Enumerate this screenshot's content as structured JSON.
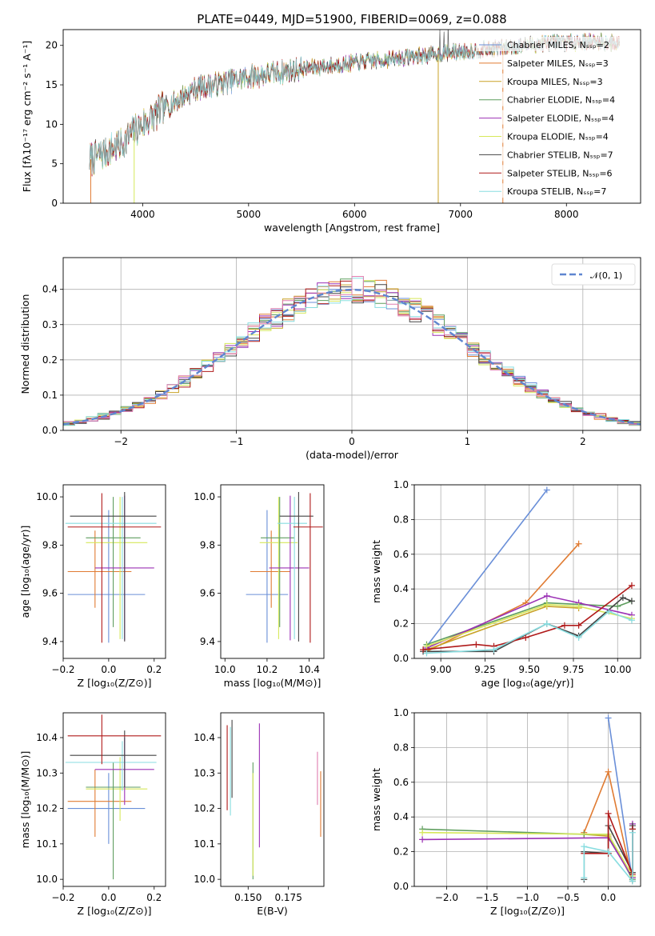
{
  "figure": {
    "title": "PLATE=0449, MJD=51900, FIBERID=0069, z=0.088"
  },
  "colors": [
    "#6a8fd8",
    "#e07b32",
    "#c9a227",
    "#5f9e5f",
    "#9b30b5",
    "#d6e85a",
    "#444444",
    "#b01a1a",
    "#88dde0"
  ],
  "chart_data": [
    {
      "id": "spectrum",
      "type": "line",
      "xlabel": "wavelength [Angstrom, rest frame]",
      "ylabel": "Flux [fλ10⁻¹⁷ erg cm⁻² s⁻¹ A⁻¹]",
      "xlim": [
        3250,
        8700
      ],
      "ylim": [
        0,
        22
      ],
      "xticks": [
        4000,
        5000,
        6000,
        7000,
        8000
      ],
      "yticks": [
        0,
        5,
        10,
        15,
        20
      ],
      "grid": false,
      "legend_position": "top-right",
      "series": [
        {
          "name": "Chabrier MILES, Nₛₛₚ=2",
          "color": "#6a8fd8"
        },
        {
          "name": "Salpeter MILES, Nₛₛₚ=3",
          "color": "#e07b32"
        },
        {
          "name": "Kroupa MILES, Nₛₛₚ=3",
          "color": "#c9a227"
        },
        {
          "name": "Chabrier ELODIE, Nₛₛₚ=4",
          "color": "#5f9e5f"
        },
        {
          "name": "Salpeter ELODIE, Nₛₛₚ=4",
          "color": "#9b30b5"
        },
        {
          "name": "Kroupa ELODIE, Nₛₛₚ=4",
          "color": "#d6e85a"
        },
        {
          "name": "Chabrier STELIB, Nₛₛₚ=7",
          "color": "#444444"
        },
        {
          "name": "Salpeter STELIB, Nₛₛₚ=6",
          "color": "#b01a1a"
        },
        {
          "name": "Kroupa STELIB, Nₛₛₚ=7",
          "color": "#88dde0"
        }
      ],
      "continuum": {
        "x": [
          3500,
          3800,
          4000,
          4200,
          4500,
          5000,
          5500,
          6000,
          6500,
          7000,
          7400,
          7800,
          8200,
          8500
        ],
        "y": [
          5.5,
          7.5,
          10.0,
          12.0,
          14.5,
          16.0,
          17.0,
          17.8,
          18.5,
          19.2,
          19.7,
          20.3,
          20.5,
          20.3
        ]
      }
    },
    {
      "id": "residuals",
      "type": "step",
      "xlabel": "(data-model)/error",
      "ylabel": "Normed distribution",
      "xlim": [
        -2.5,
        2.5
      ],
      "ylim": [
        0,
        0.49
      ],
      "xticks": [
        -2,
        -1,
        0,
        1,
        2
      ],
      "yticks": [
        0.0,
        0.1,
        0.2,
        0.3,
        0.4
      ],
      "grid": true,
      "legend_position": "top-right",
      "reference": {
        "name": "𝒩(0, 1)",
        "mean": 0,
        "sigma": 1,
        "color": "#5f86d0"
      },
      "bins": {
        "start": -2.5,
        "width": 0.1,
        "count": 50
      }
    },
    {
      "id": "age-vs-Z",
      "type": "errorbar",
      "xlabel": "Z [log₁₀(Z/Z⊙)]",
      "ylabel": "age  [log₁₀(age/yr)]",
      "xlim": [
        -0.2,
        0.25
      ],
      "ylim": [
        9.33,
        10.05
      ],
      "xticks": [
        -0.2,
        0.0,
        0.2
      ],
      "yticks": [
        9.4,
        9.6,
        9.8,
        10.0
      ],
      "grid": false,
      "points": [
        {
          "x": 0.0,
          "xerr": [
            0.18,
            0.16
          ],
          "y": 9.595,
          "yerr": [
            0.2,
            0.35
          ],
          "color": "#6a8fd8"
        },
        {
          "x": -0.06,
          "xerr": [
            0.12,
            0.16
          ],
          "y": 9.69,
          "yerr": [
            0.15,
            0.17
          ],
          "color": "#e07b32"
        },
        {
          "x": 0.05,
          "xerr": [
            0.15,
            0.12
          ],
          "y": 9.81,
          "yerr": [
            0.4,
            0.19
          ],
          "color": "#d6e85a"
        },
        {
          "x": 0.02,
          "xerr": [
            0.12,
            0.12
          ],
          "y": 9.83,
          "yerr": [
            0.37,
            0.17
          ],
          "color": "#5f9e5f"
        },
        {
          "x": 0.07,
          "xerr": [
            0.13,
            0.13
          ],
          "y": 9.705,
          "yerr": [
            0.3,
            0.3
          ],
          "color": "#9b30b5"
        },
        {
          "x": 0.06,
          "xerr": [
            0.25,
            0.15
          ],
          "y": 9.89,
          "yerr": [
            0.48,
            0.11
          ],
          "color": "#88dde0"
        },
        {
          "x": 0.07,
          "xerr": [
            0.24,
            0.14
          ],
          "y": 9.92,
          "yerr": [
            0.52,
            0.1
          ],
          "color": "#444444"
        },
        {
          "x": -0.03,
          "xerr": [
            0.15,
            0.26
          ],
          "y": 9.875,
          "yerr": [
            0.48,
            0.14
          ],
          "color": "#b01a1a"
        }
      ]
    },
    {
      "id": "age-vs-mass",
      "type": "errorbar",
      "xlabel": "mass [log₁₀(M/M⊙)]",
      "ylabel": "",
      "xlim": [
        9.98,
        10.47
      ],
      "ylim": [
        9.33,
        10.05
      ],
      "xticks": [
        10.0,
        10.2,
        10.4
      ],
      "yticks": [
        9.4,
        9.6,
        9.8,
        10.0
      ],
      "grid": false,
      "points": [
        {
          "x": 10.2,
          "xerr": [
            0.1,
            0.1
          ],
          "y": 9.595,
          "yerr": [
            0.2,
            0.35
          ],
          "color": "#6a8fd8"
        },
        {
          "x": 10.22,
          "xerr": [
            0.1,
            0.09
          ],
          "y": 9.69,
          "yerr": [
            0.15,
            0.17
          ],
          "color": "#e07b32"
        },
        {
          "x": 10.255,
          "xerr": [
            0.09,
            0.09
          ],
          "y": 9.81,
          "yerr": [
            0.4,
            0.19
          ],
          "color": "#d6e85a"
        },
        {
          "x": 10.26,
          "xerr": [
            0.09,
            0.07
          ],
          "y": 9.83,
          "yerr": [
            0.37,
            0.17
          ],
          "color": "#5f9e5f"
        },
        {
          "x": 10.31,
          "xerr": [
            0.1,
            0.09
          ],
          "y": 9.705,
          "yerr": [
            0.3,
            0.3
          ],
          "color": "#9b30b5"
        },
        {
          "x": 10.33,
          "xerr": [
            0.08,
            0.06
          ],
          "y": 9.89,
          "yerr": [
            0.48,
            0.11
          ],
          "color": "#88dde0"
        },
        {
          "x": 10.35,
          "xerr": [
            0.09,
            0.07
          ],
          "y": 9.92,
          "yerr": [
            0.52,
            0.1
          ],
          "color": "#444444"
        },
        {
          "x": 10.405,
          "xerr": [
            0.08,
            0.06
          ],
          "y": 9.875,
          "yerr": [
            0.48,
            0.14
          ],
          "color": "#b01a1a"
        }
      ]
    },
    {
      "id": "weight-vs-age",
      "type": "line",
      "xlabel": "age  [log₁₀(age/yr)]",
      "ylabel": "mass weight",
      "xlim": [
        8.85,
        10.13
      ],
      "ylim": [
        0,
        1.0
      ],
      "xticks": [
        9.0,
        9.25,
        9.5,
        9.75,
        10.0
      ],
      "yticks": [
        0.0,
        0.2,
        0.4,
        0.6,
        0.8,
        1.0
      ],
      "grid": true,
      "series": [
        {
          "color": "#6a8fd8",
          "x": [
            8.92,
            9.6
          ],
          "y": [
            0.07,
            0.97
          ]
        },
        {
          "color": "#e07b32",
          "x": [
            8.92,
            9.48,
            9.78
          ],
          "y": [
            0.04,
            0.32,
            0.66
          ]
        },
        {
          "color": "#c9a227",
          "x": [
            8.92,
            9.6,
            9.78
          ],
          "y": [
            0.05,
            0.3,
            0.29
          ]
        },
        {
          "color": "#5f9e5f",
          "x": [
            8.92,
            9.6,
            10.0,
            10.08
          ],
          "y": [
            0.08,
            0.32,
            0.3,
            0.33
          ]
        },
        {
          "color": "#9b30b5",
          "x": [
            8.92,
            9.6,
            9.78,
            10.08
          ],
          "y": [
            0.06,
            0.36,
            0.32,
            0.25
          ]
        },
        {
          "color": "#d6e85a",
          "x": [
            8.92,
            9.6,
            9.78,
            10.08
          ],
          "y": [
            0.07,
            0.31,
            0.3,
            0.23
          ]
        },
        {
          "color": "#444444",
          "x": [
            8.9,
            9.3,
            9.6,
            9.78,
            10.03,
            10.08
          ],
          "y": [
            0.04,
            0.04,
            0.2,
            0.13,
            0.35,
            0.33
          ]
        },
        {
          "color": "#b01a1a",
          "x": [
            8.9,
            9.2,
            9.3,
            9.48,
            9.7,
            9.78,
            10.08
          ],
          "y": [
            0.05,
            0.08,
            0.07,
            0.12,
            0.19,
            0.19,
            0.42
          ]
        },
        {
          "color": "#88dde0",
          "x": [
            8.92,
            9.3,
            9.6,
            9.78,
            9.95,
            10.08
          ],
          "y": [
            0.03,
            0.05,
            0.2,
            0.12,
            0.27,
            0.22
          ]
        }
      ]
    },
    {
      "id": "mass-vs-Z",
      "type": "errorbar",
      "xlabel": "Z [log₁₀(Z/Z⊙)]",
      "ylabel": "mass [log₁₀(M/M⊙)]",
      "xlim": [
        -0.2,
        0.25
      ],
      "ylim": [
        9.98,
        10.47
      ],
      "xticks": [
        -0.2,
        0.0,
        0.2
      ],
      "yticks": [
        10.0,
        10.1,
        10.2,
        10.3,
        10.4
      ],
      "grid": false,
      "points": [
        {
          "x": 0.0,
          "xerr": [
            0.18,
            0.16
          ],
          "y": 10.2,
          "yerr": [
            0.1,
            0.1
          ],
          "color": "#6a8fd8"
        },
        {
          "x": -0.06,
          "xerr": [
            0.12,
            0.16
          ],
          "y": 10.22,
          "yerr": [
            0.1,
            0.09
          ],
          "color": "#e07b32"
        },
        {
          "x": 0.05,
          "xerr": [
            0.15,
            0.12
          ],
          "y": 10.255,
          "yerr": [
            0.09,
            0.09
          ],
          "color": "#d6e85a"
        },
        {
          "x": 0.02,
          "xerr": [
            0.12,
            0.12
          ],
          "y": 10.26,
          "yerr": [
            0.26,
            0.07
          ],
          "color": "#5f9e5f"
        },
        {
          "x": 0.07,
          "xerr": [
            0.13,
            0.13
          ],
          "y": 10.31,
          "yerr": [
            0.1,
            0.09
          ],
          "color": "#9b30b5"
        },
        {
          "x": 0.06,
          "xerr": [
            0.25,
            0.15
          ],
          "y": 10.33,
          "yerr": [
            0.08,
            0.06
          ],
          "color": "#88dde0"
        },
        {
          "x": 0.07,
          "xerr": [
            0.24,
            0.14
          ],
          "y": 10.35,
          "yerr": [
            0.09,
            0.07
          ],
          "color": "#444444"
        },
        {
          "x": -0.03,
          "xerr": [
            0.15,
            0.26
          ],
          "y": 10.405,
          "yerr": [
            0.08,
            0.06
          ],
          "color": "#b01a1a"
        }
      ]
    },
    {
      "id": "mass-vs-EBV",
      "type": "errorbar",
      "xlabel": "E(B-V)",
      "ylabel": "",
      "xlim": [
        0.133,
        0.197
      ],
      "ylim": [
        9.98,
        10.47
      ],
      "xticks": [
        0.15,
        0.175
      ],
      "yticks": [
        10.0,
        10.1,
        10.2,
        10.3,
        10.4
      ],
      "grid": false,
      "points": [
        {
          "x": 0.137,
          "y": 10.315,
          "yerr": [
            0.12,
            0.12
          ],
          "color": "#b01a1a"
        },
        {
          "x": 0.139,
          "y": 10.31,
          "yerr": [
            0.13,
            0.12
          ],
          "color": "#88dde0"
        },
        {
          "x": 0.14,
          "y": 10.36,
          "yerr": [
            0.13,
            0.09
          ],
          "color": "#444444"
        },
        {
          "x": 0.153,
          "y": 10.17,
          "yerr": [
            0.17,
            0.16
          ],
          "color": "#5f9e5f"
        },
        {
          "x": 0.153,
          "y": 10.16,
          "yerr": [
            0.15,
            0.14
          ],
          "color": "#d6e85a"
        },
        {
          "x": 0.157,
          "y": 10.27,
          "yerr": [
            0.18,
            0.17
          ],
          "color": "#9b30b5"
        },
        {
          "x": 0.193,
          "y": 10.29,
          "yerr": [
            0.08,
            0.07
          ],
          "color": "#e07fb0"
        },
        {
          "x": 0.195,
          "y": 10.215,
          "yerr": [
            0.095,
            0.09
          ],
          "color": "#e07b32"
        }
      ]
    },
    {
      "id": "weight-vs-Z",
      "type": "line",
      "xlabel": "Z [log₁₀(Z/Z⊙)]",
      "ylabel": "mass weight",
      "xlim": [
        -2.4,
        0.4
      ],
      "ylim": [
        0,
        1.0
      ],
      "xticks": [
        -2.0,
        -1.5,
        -1.0,
        -0.5,
        0.0
      ],
      "yticks": [
        0.0,
        0.2,
        0.4,
        0.6,
        0.8,
        1.0
      ],
      "grid": true,
      "series": [
        {
          "color": "#6a8fd8",
          "x": [
            0.0,
            0.3
          ],
          "y": [
            0.97,
            0.03
          ]
        },
        {
          "color": "#e07b32",
          "x": [
            -0.3,
            0.0,
            0.3
          ],
          "y": [
            0.31,
            0.66,
            0.03
          ]
        },
        {
          "color": "#c9a227",
          "x": [
            -0.3,
            0.0,
            0.3
          ],
          "y": [
            0.3,
            0.29,
            0.05
          ]
        },
        {
          "color": "#5f9e5f",
          "x": [
            -2.3,
            -0.3,
            0.0,
            0.3,
            0.3
          ],
          "y": [
            0.33,
            0.3,
            0.3,
            0.04,
            0.33
          ]
        },
        {
          "color": "#9b30b5",
          "x": [
            -2.3,
            0.0,
            0.3,
            0.3
          ],
          "y": [
            0.27,
            0.28,
            0.05,
            0.36
          ]
        },
        {
          "color": "#d6e85a",
          "x": [
            -2.3,
            0.0,
            0.3
          ],
          "y": [
            0.31,
            0.3,
            0.06
          ]
        },
        {
          "color": "#444444",
          "x": [
            -0.3,
            -0.3,
            0.0,
            0.0,
            0.3,
            0.3
          ],
          "y": [
            0.04,
            0.2,
            0.19,
            0.35,
            0.08,
            0.35
          ]
        },
        {
          "color": "#b01a1a",
          "x": [
            -0.3,
            0.0,
            0.0,
            0.3,
            0.3
          ],
          "y": [
            0.19,
            0.19,
            0.42,
            0.07,
            0.33
          ]
        },
        {
          "color": "#88dde0",
          "x": [
            -0.3,
            -0.3,
            0.0,
            0.3,
            0.3
          ],
          "y": [
            0.05,
            0.23,
            0.2,
            0.03,
            0.31
          ]
        }
      ]
    }
  ]
}
